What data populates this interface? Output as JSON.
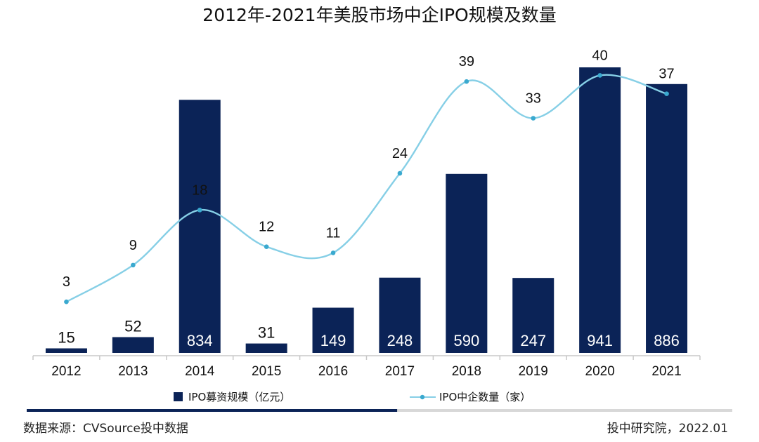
{
  "colors": {
    "bar": "#0b2357",
    "line": "#86cfe6",
    "marker": "#3aa9cf",
    "axis": "#c8c8c8",
    "progress_dark": "#0b2357",
    "progress_light": "#d8d8d8"
  },
  "chart_data": {
    "type": "bar+line",
    "title": "2012年-2021年美股市场中企IPO规模及数量",
    "categories": [
      "2012",
      "2013",
      "2014",
      "2015",
      "2016",
      "2017",
      "2018",
      "2019",
      "2020",
      "2021"
    ],
    "series": [
      {
        "name": "IPO募资规模（亿元）",
        "type": "bar",
        "axis": "left",
        "values": [
          15,
          52,
          834,
          31,
          149,
          248,
          590,
          247,
          941,
          886
        ]
      },
      {
        "name": "IPO中企数量（家）",
        "type": "line",
        "axis": "right",
        "values": [
          3,
          9,
          18,
          12,
          11,
          24,
          39,
          33,
          40,
          37
        ]
      }
    ],
    "bar_ylim": [
      0,
      941
    ],
    "line_ylim": [
      -5,
      42
    ],
    "grid": false,
    "legend_position": "bottom"
  },
  "footer": {
    "source": "数据来源：CVSource投中数据",
    "credit": "投中研究院，2022.01",
    "progress": 0.525
  }
}
